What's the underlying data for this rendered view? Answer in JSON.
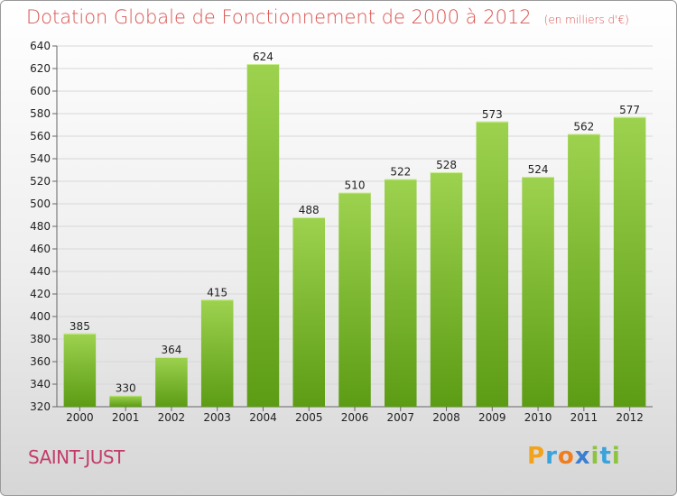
{
  "header": {
    "title": "Dotation Globale de Fonctionnement de 2000 à 2012",
    "unit": "(en milliers d'€)"
  },
  "footer": {
    "commune": "SAINT-JUST",
    "logo": {
      "p": "P",
      "r": "r",
      "o": "o",
      "x": "x",
      "i1": "i",
      "t": "t",
      "i2": "i"
    }
  },
  "colors": {
    "bar_light": "#9dd24f",
    "bar_dark": "#5c9c14",
    "title": "#d9534f",
    "commune": "#c23c6a"
  },
  "chart_data": {
    "type": "bar",
    "title": "Dotation Globale de Fonctionnement de 2000 à 2012",
    "subtitle": "(en milliers d'€)",
    "xlabel": "",
    "ylabel": "",
    "categories": [
      "2000",
      "2001",
      "2002",
      "2003",
      "2004",
      "2005",
      "2006",
      "2007",
      "2008",
      "2009",
      "2010",
      "2011",
      "2012"
    ],
    "values": [
      385,
      330,
      364,
      415,
      624,
      488,
      510,
      522,
      528,
      573,
      524,
      562,
      577
    ],
    "ylim": [
      320,
      640
    ],
    "yticks": [
      320,
      340,
      360,
      380,
      400,
      420,
      440,
      460,
      480,
      500,
      520,
      540,
      560,
      580,
      600,
      620,
      640
    ],
    "grid": true,
    "legend": "none"
  }
}
